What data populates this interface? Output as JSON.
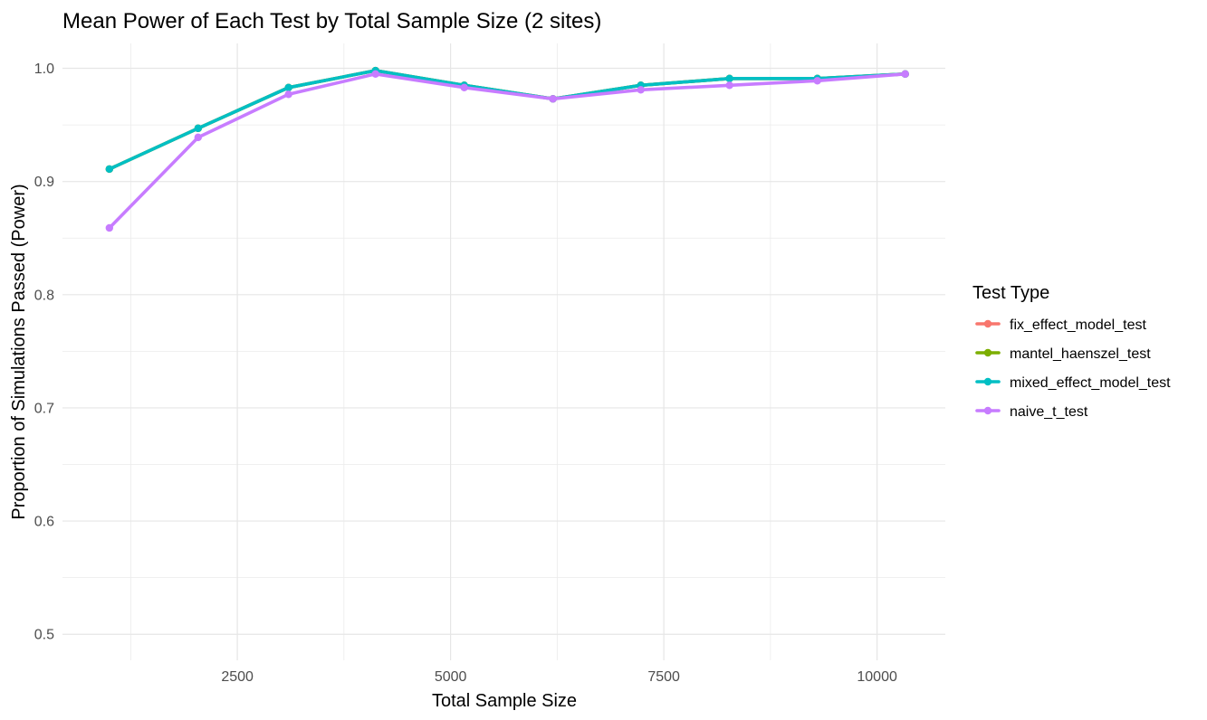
{
  "chart_data": {
    "type": "line",
    "title": "Mean Power of Each Test by Total Sample Size (2 sites)",
    "xlabel": "Total Sample Size",
    "ylabel": "Proportion of Simulations Passed (Power)",
    "xlim": [
      450,
      10800
    ],
    "ylim": [
      0.477,
      1.022
    ],
    "x_ticks": [
      2500,
      5000,
      7500,
      10000
    ],
    "x_tick_labels": [
      "2500",
      "5000",
      "7500",
      "10000"
    ],
    "y_ticks": [
      0.5,
      0.6,
      0.7,
      0.8,
      0.9,
      1.0
    ],
    "y_tick_labels": [
      "0.5",
      "0.6",
      "0.7",
      "0.8",
      "0.9",
      "1.0"
    ],
    "grid": true,
    "legend": {
      "title": "Test Type",
      "position": "right"
    },
    "x": [
      1000,
      2040,
      3100,
      4120,
      5160,
      6200,
      7230,
      8270,
      9300,
      10330
    ],
    "series": [
      {
        "name": "fix_effect_model_test",
        "color": "#F8766D",
        "values": [
          0.911,
          0.947,
          0.983,
          0.998,
          0.985,
          0.973,
          0.985,
          0.991,
          0.991,
          0.995
        ]
      },
      {
        "name": "mantel_haenszel_test",
        "color": "#7CAE00",
        "values": [
          0.911,
          0.947,
          0.983,
          0.998,
          0.985,
          0.973,
          0.985,
          0.991,
          0.991,
          0.995
        ]
      },
      {
        "name": "mixed_effect_model_test",
        "color": "#00BFC4",
        "values": [
          0.911,
          0.947,
          0.983,
          0.998,
          0.985,
          0.973,
          0.985,
          0.991,
          0.991,
          0.995
        ]
      },
      {
        "name": "naive_t_test",
        "color": "#C77CFF",
        "values": [
          0.859,
          0.939,
          0.977,
          0.995,
          0.983,
          0.973,
          0.981,
          0.985,
          0.989,
          0.995
        ]
      }
    ]
  }
}
